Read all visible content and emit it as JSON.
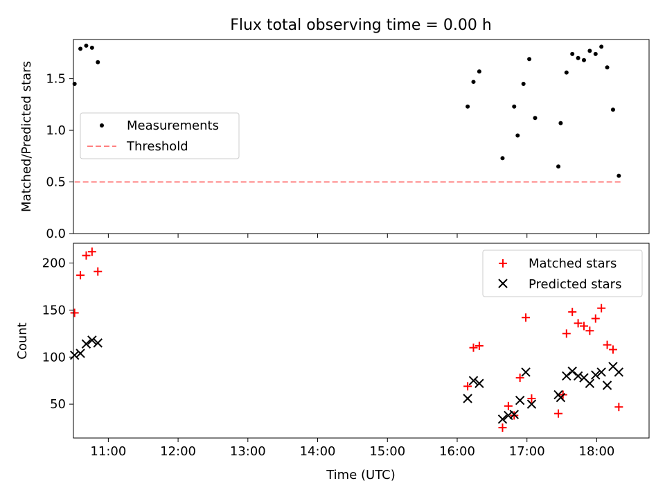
{
  "figure": {
    "title": "Flux total observing time = 0.00 h",
    "xlabel": "Time (UTC)"
  },
  "chart_data": [
    {
      "type": "scatter",
      "ylabel": "Matched/Predicted stars",
      "xlim": [
        "10:30",
        "18:45"
      ],
      "ylim": [
        0,
        1.88
      ],
      "yticks": [
        "0.0",
        "0.5",
        "1.0",
        "1.5"
      ],
      "ytick_values": [
        0,
        0.5,
        1.0,
        1.5
      ],
      "xticks": [
        "11:00",
        "12:00",
        "13:00",
        "14:00",
        "15:00",
        "16:00",
        "17:00",
        "18:00"
      ],
      "xtick_labels_visible": false,
      "legend_placement": "center-left",
      "legend": [
        "Measurements",
        "Threshold"
      ],
      "colors": {
        "measurements": "#000000",
        "threshold": "#ff8080"
      },
      "series": [
        {
          "name": "Measurements",
          "marker": "dot",
          "points": [
            [
              "10:31",
              1.45
            ],
            [
              "10:36",
              1.79
            ],
            [
              "10:41",
              1.82
            ],
            [
              "10:46",
              1.8
            ],
            [
              "10:51",
              1.66
            ],
            [
              "16:09",
              1.23
            ],
            [
              "16:14",
              1.47
            ],
            [
              "16:19",
              1.57
            ],
            [
              "16:39",
              0.73
            ],
            [
              "16:49",
              1.23
            ],
            [
              "16:52",
              0.95
            ],
            [
              "16:57",
              1.45
            ],
            [
              "17:02",
              1.69
            ],
            [
              "17:07",
              1.12
            ],
            [
              "17:27",
              0.65
            ],
            [
              "17:29",
              1.07
            ],
            [
              "17:34",
              1.56
            ],
            [
              "17:39",
              1.74
            ],
            [
              "17:44",
              1.7
            ],
            [
              "17:49",
              1.68
            ],
            [
              "17:54",
              1.77
            ],
            [
              "17:59",
              1.74
            ],
            [
              "18:04",
              1.81
            ],
            [
              "18:09",
              1.61
            ],
            [
              "18:14",
              1.2
            ],
            [
              "18:19",
              0.56
            ]
          ]
        },
        {
          "name": "Threshold",
          "line": "dashed",
          "points": [
            [
              "10:31",
              0.5
            ],
            [
              "18:22",
              0.5
            ]
          ]
        }
      ]
    },
    {
      "type": "scatter",
      "ylabel": "Count",
      "xlim": [
        "10:30",
        "18:45"
      ],
      "ylim": [
        14,
        221
      ],
      "yticks": [
        "50",
        "100",
        "150",
        "200"
      ],
      "ytick_values": [
        50,
        100,
        150,
        200
      ],
      "xticks": [
        "11:00",
        "12:00",
        "13:00",
        "14:00",
        "15:00",
        "16:00",
        "17:00",
        "18:00"
      ],
      "legend_placement": "top-right",
      "legend": [
        "Matched stars",
        "Predicted stars"
      ],
      "colors": {
        "matched": "#ff0000",
        "predicted": "#000000"
      },
      "series": [
        {
          "name": "Matched stars",
          "marker": "plus",
          "points": [
            [
              "10:31",
              147
            ],
            [
              "10:36",
              187
            ],
            [
              "10:41",
              208
            ],
            [
              "10:46",
              212
            ],
            [
              "10:51",
              191
            ],
            [
              "16:09",
              69
            ],
            [
              "16:14",
              110
            ],
            [
              "16:19",
              112
            ],
            [
              "16:39",
              25
            ],
            [
              "16:44",
              48
            ],
            [
              "16:49",
              38
            ],
            [
              "16:54",
              78
            ],
            [
              "16:59",
              142
            ],
            [
              "17:04",
              56
            ],
            [
              "17:27",
              40
            ],
            [
              "17:31",
              60
            ],
            [
              "17:34",
              125
            ],
            [
              "17:39",
              148
            ],
            [
              "17:44",
              136
            ],
            [
              "17:49",
              133
            ],
            [
              "17:54",
              128
            ],
            [
              "17:59",
              141
            ],
            [
              "18:04",
              152
            ],
            [
              "18:09",
              113
            ],
            [
              "18:14",
              108
            ],
            [
              "18:19",
              47
            ]
          ]
        },
        {
          "name": "Predicted stars",
          "marker": "x",
          "points": [
            [
              "10:31",
              102
            ],
            [
              "10:36",
              104
            ],
            [
              "10:41",
              114
            ],
            [
              "10:46",
              118
            ],
            [
              "10:51",
              115
            ],
            [
              "16:09",
              56
            ],
            [
              "16:14",
              75
            ],
            [
              "16:19",
              72
            ],
            [
              "16:39",
              34
            ],
            [
              "16:44",
              38
            ],
            [
              "16:49",
              39
            ],
            [
              "16:54",
              54
            ],
            [
              "16:59",
              84
            ],
            [
              "17:04",
              50
            ],
            [
              "17:27",
              60
            ],
            [
              "17:29",
              57
            ],
            [
              "17:34",
              80
            ],
            [
              "17:39",
              85
            ],
            [
              "17:44",
              80
            ],
            [
              "17:49",
              78
            ],
            [
              "17:54",
              72
            ],
            [
              "17:59",
              81
            ],
            [
              "18:04",
              84
            ],
            [
              "18:09",
              70
            ],
            [
              "18:14",
              90
            ],
            [
              "18:19",
              84
            ]
          ]
        }
      ]
    }
  ]
}
